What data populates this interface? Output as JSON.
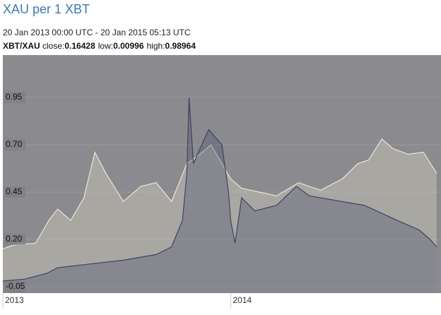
{
  "chart_data": {
    "type": "line",
    "title": "XAU per 1 XBT",
    "subtitle": "20 Jan 2013 00:00 UTC - 20 Jan 2015 05:13 UTC",
    "pair": "XBT/XAU",
    "stats": [
      {
        "label": "close:",
        "value": "0.16428"
      },
      {
        "label": "low:",
        "value": "0.00996"
      },
      {
        "label": "high:",
        "value": "0.98964"
      }
    ],
    "background": "#8b8b8f",
    "grid": true,
    "xlim": [
      2013.05,
      2015.05
    ],
    "xticks": [
      {
        "value": 2013.05,
        "label": "2013"
      },
      {
        "value": 2014.09,
        "label": "2014"
      }
    ],
    "ylim": [
      -0.084,
      1.174
    ],
    "yticks": [
      {
        "value": 0.95,
        "label": "0.95"
      },
      {
        "value": 0.7,
        "label": "0.70"
      },
      {
        "value": 0.45,
        "label": "0.45"
      },
      {
        "value": 0.2,
        "label": "0.20"
      },
      {
        "value": -0.05,
        "label": "-0.05"
      }
    ],
    "series": [
      {
        "color": "#ebe7cf",
        "x": [
          2013.05,
          2013.1,
          2013.2,
          2013.26,
          2013.3,
          2013.36,
          2013.42,
          2013.47,
          2013.52,
          2013.6,
          2013.68,
          2013.75,
          2013.82,
          2013.89,
          2013.95,
          2014.0,
          2014.09,
          2014.14,
          2014.3,
          2014.4,
          2014.5,
          2014.6,
          2014.67,
          2014.72,
          2014.78,
          2014.83,
          2014.9,
          2014.97,
          2015.03
        ],
        "values": [
          0.15,
          0.17,
          0.18,
          0.3,
          0.36,
          0.3,
          0.42,
          0.66,
          0.55,
          0.4,
          0.48,
          0.5,
          0.4,
          0.6,
          0.65,
          0.7,
          0.52,
          0.47,
          0.43,
          0.5,
          0.46,
          0.52,
          0.6,
          0.62,
          0.73,
          0.68,
          0.65,
          0.66,
          0.55
        ]
      },
      {
        "color": "#3d4262",
        "x": [
          2013.05,
          2013.15,
          2013.25,
          2013.3,
          2013.45,
          2013.6,
          2013.75,
          2013.82,
          2013.87,
          2013.89,
          2013.9,
          2013.92,
          2013.95,
          2013.99,
          2014.05,
          2014.08,
          2014.09,
          2014.11,
          2014.14,
          2014.2,
          2014.3,
          2014.39,
          2014.45,
          2014.55,
          2014.7,
          2014.85,
          2014.95,
          2015.0,
          2015.03
        ],
        "values": [
          -0.02,
          -0.01,
          0.02,
          0.05,
          0.07,
          0.09,
          0.12,
          0.16,
          0.3,
          0.55,
          0.95,
          0.6,
          0.68,
          0.78,
          0.7,
          0.45,
          0.3,
          0.18,
          0.42,
          0.35,
          0.38,
          0.48,
          0.43,
          0.41,
          0.38,
          0.3,
          0.25,
          0.2,
          0.16
        ]
      }
    ]
  }
}
